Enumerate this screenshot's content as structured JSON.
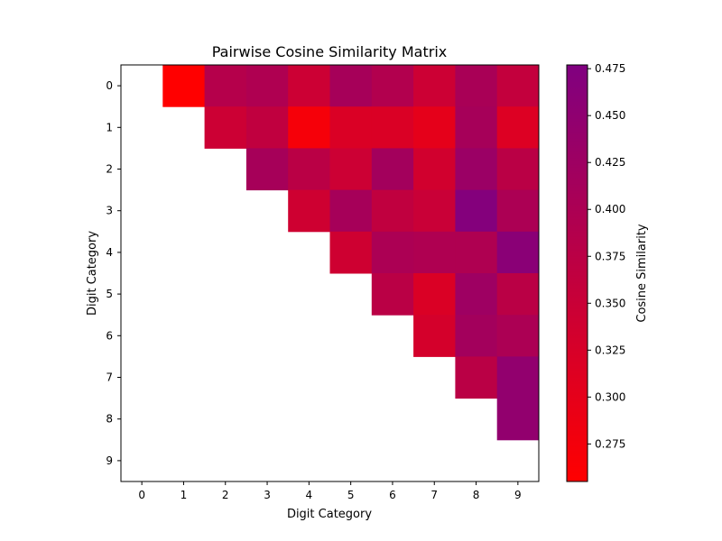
{
  "chart_data": {
    "type": "heatmap",
    "title": "Pairwise Cosine Similarity Matrix",
    "xlabel": "Digit Category",
    "ylabel": "Digit Category",
    "x_categories": [
      "0",
      "1",
      "2",
      "3",
      "4",
      "5",
      "6",
      "7",
      "8",
      "9"
    ],
    "y_categories": [
      "0",
      "1",
      "2",
      "3",
      "4",
      "5",
      "6",
      "7",
      "8",
      "9"
    ],
    "mask": "upper-triangle (cells with column <= row are blank)",
    "values": [
      [
        null,
        0.255,
        0.385,
        0.395,
        0.345,
        0.41,
        0.39,
        0.345,
        0.405,
        0.36
      ],
      [
        null,
        null,
        0.345,
        0.365,
        0.27,
        0.32,
        0.32,
        0.3,
        0.41,
        0.315
      ],
      [
        null,
        null,
        null,
        0.41,
        0.375,
        0.345,
        0.415,
        0.335,
        0.43,
        0.375
      ],
      [
        null,
        null,
        null,
        null,
        0.34,
        0.41,
        0.365,
        0.35,
        0.47,
        0.4
      ],
      [
        null,
        null,
        null,
        null,
        null,
        0.34,
        0.4,
        0.395,
        0.395,
        0.46
      ],
      [
        null,
        null,
        null,
        null,
        null,
        null,
        0.375,
        0.32,
        0.425,
        0.375
      ],
      [
        null,
        null,
        null,
        null,
        null,
        null,
        null,
        0.33,
        0.415,
        0.4
      ],
      [
        null,
        null,
        null,
        null,
        null,
        null,
        null,
        null,
        0.375,
        0.445
      ],
      [
        null,
        null,
        null,
        null,
        null,
        null,
        null,
        null,
        null,
        0.445
      ],
      [
        null,
        null,
        null,
        null,
        null,
        null,
        null,
        null,
        null,
        null
      ]
    ],
    "colorbar": {
      "label": "Cosine Similarity",
      "range": [
        0.255,
        0.477
      ],
      "ticks": [
        "0.275",
        "0.300",
        "0.325",
        "0.350",
        "0.375",
        "0.400",
        "0.425",
        "0.450",
        "0.475"
      ],
      "colors": [
        "#ff0000",
        "#800080"
      ]
    },
    "grid": false
  }
}
